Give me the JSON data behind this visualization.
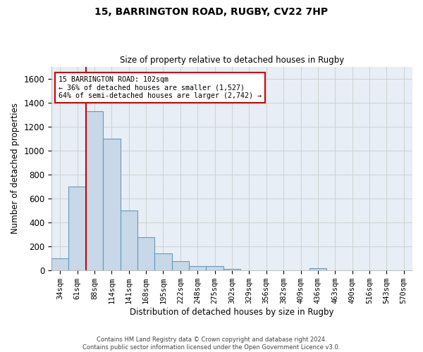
{
  "title1": "15, BARRINGTON ROAD, RUGBY, CV22 7HP",
  "title2": "Size of property relative to detached houses in Rugby",
  "xlabel": "Distribution of detached houses by size in Rugby",
  "ylabel": "Number of detached properties",
  "bin_labels": [
    "34sqm",
    "61sqm",
    "88sqm",
    "114sqm",
    "141sqm",
    "168sqm",
    "195sqm",
    "222sqm",
    "248sqm",
    "275sqm",
    "302sqm",
    "329sqm",
    "356sqm",
    "382sqm",
    "409sqm",
    "436sqm",
    "463sqm",
    "490sqm",
    "516sqm",
    "543sqm",
    "570sqm"
  ],
  "bar_heights": [
    100,
    700,
    1330,
    1100,
    500,
    275,
    140,
    75,
    35,
    35,
    15,
    0,
    0,
    0,
    0,
    20,
    0,
    0,
    0,
    0,
    0
  ],
  "bar_color": "#c8d8e8",
  "bar_edge_color": "#6699bb",
  "bar_edge_width": 0.8,
  "vline_color": "#cc0000",
  "annotation_text": "15 BARRINGTON ROAD: 102sqm\n← 36% of detached houses are smaller (1,527)\n64% of semi-detached houses are larger (2,742) →",
  "annotation_box_color": "#ffffff",
  "annotation_box_edge_color": "#cc0000",
  "ylim": [
    0,
    1700
  ],
  "yticks": [
    0,
    200,
    400,
    600,
    800,
    1000,
    1200,
    1400,
    1600
  ],
  "grid_color": "#cccccc",
  "bg_color": "#e8eef5",
  "footer": "Contains HM Land Registry data © Crown copyright and database right 2024.\nContains public sector information licensed under the Open Government Licence v3.0."
}
